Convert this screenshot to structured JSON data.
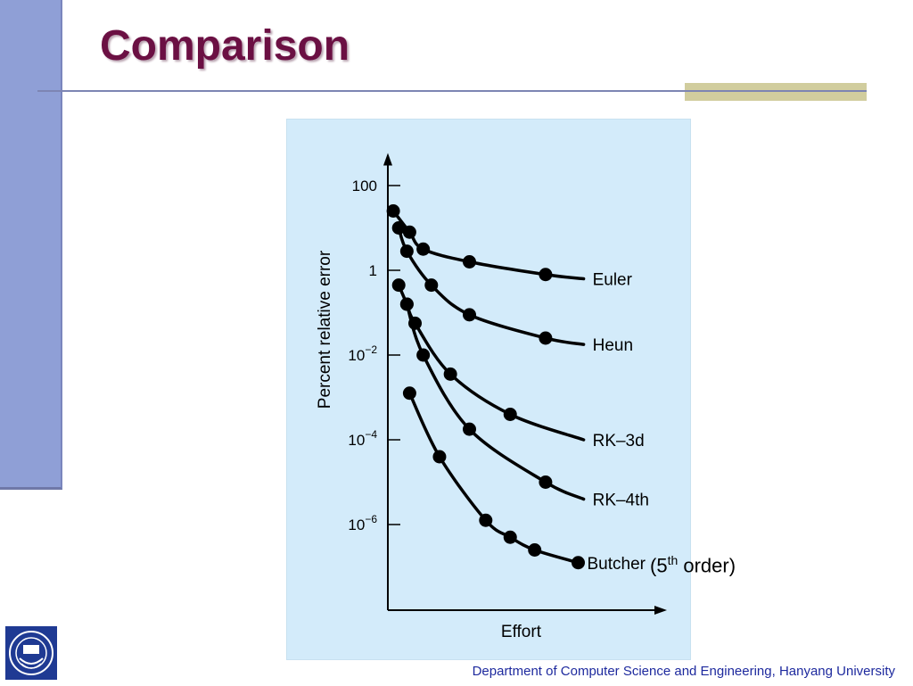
{
  "slide": {
    "title": "Comparison",
    "footer": "Department of Computer Science and Engineering, Hanyang University",
    "order_note": {
      "prefix": "(5",
      "sup": "th",
      "suffix": " order)"
    },
    "colors": {
      "title": "#6b1043",
      "left_bar": "#8f9fd6",
      "accent_bar": "#d1cd9e",
      "figure_bg": "#d3ebfa",
      "footer_text": "#1e2a9e",
      "logo_blue": "#1f3a93"
    }
  },
  "chart_data": {
    "type": "line",
    "title": "",
    "xlabel": "Effort",
    "ylabel": "Percent relative error",
    "y_scale": "log",
    "ylim_exponent": [
      -8,
      2.6
    ],
    "xlim": [
      0,
      10
    ],
    "y_ticks": [
      {
        "exp": 2,
        "base": "100",
        "sup": ""
      },
      {
        "exp": 0,
        "base": "1",
        "sup": ""
      },
      {
        "exp": -2,
        "base": "10",
        "sup": "−2"
      },
      {
        "exp": -4,
        "base": "10",
        "sup": "−4"
      },
      {
        "exp": -6,
        "base": "10",
        "sup": "−6"
      }
    ],
    "grid": false,
    "legend": "inline labels at right end of curves",
    "series": [
      {
        "name": "Euler",
        "points": [
          [
            0.2,
            1.4
          ],
          [
            0.8,
            0.9
          ],
          [
            1.3,
            0.5
          ],
          [
            3.0,
            0.2
          ],
          [
            5.8,
            -0.1
          ]
        ],
        "end": [
          7.2,
          -0.2
        ]
      },
      {
        "name": "Heun",
        "points": [
          [
            0.4,
            1.0
          ],
          [
            0.7,
            0.45
          ],
          [
            1.6,
            -0.35
          ],
          [
            3.0,
            -1.05
          ],
          [
            5.8,
            -1.6
          ]
        ],
        "end": [
          7.2,
          -1.75
        ]
      },
      {
        "name": "RK–3d",
        "points": [
          [
            0.4,
            -0.35
          ],
          [
            0.7,
            -0.8
          ],
          [
            1.0,
            -1.25
          ],
          [
            2.3,
            -2.45
          ],
          [
            4.5,
            -3.4
          ]
        ],
        "end": [
          7.2,
          -4.0
        ]
      },
      {
        "name": "RK–4th",
        "points": [
          [
            0.7,
            -0.8
          ],
          [
            1.3,
            -2.0
          ],
          [
            3.0,
            -3.75
          ],
          [
            5.8,
            -5.0
          ]
        ],
        "end": [
          7.2,
          -5.4
        ]
      },
      {
        "name": "Butcher",
        "points": [
          [
            0.8,
            -2.9
          ],
          [
            1.9,
            -4.4
          ],
          [
            3.6,
            -5.9
          ],
          [
            4.5,
            -6.3
          ],
          [
            5.4,
            -6.6
          ],
          [
            7.0,
            -6.9
          ]
        ],
        "end": [
          7.0,
          -6.9
        ]
      }
    ]
  }
}
